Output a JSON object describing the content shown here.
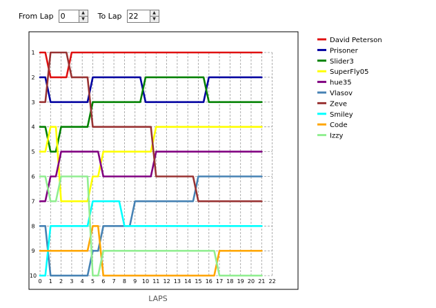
{
  "controls": {
    "from_label": "From Lap",
    "from_value": "0",
    "to_label": "To Lap",
    "to_value": "22"
  },
  "chart_data": {
    "type": "line",
    "xlabel": "LAPS",
    "ylabel": "",
    "x": [
      0,
      1,
      2,
      3,
      4,
      5,
      6,
      7,
      8,
      9,
      10,
      11,
      12,
      13,
      14,
      15,
      16,
      17,
      18,
      19,
      20,
      21
    ],
    "x_ticks": [
      0,
      1,
      2,
      3,
      4,
      5,
      6,
      7,
      8,
      9,
      10,
      11,
      12,
      13,
      14,
      15,
      16,
      17,
      18,
      19,
      20,
      21,
      22
    ],
    "y_ticks": [
      1,
      2,
      3,
      4,
      5,
      6,
      7,
      8,
      9,
      10
    ],
    "xlim": [
      0,
      22
    ],
    "ylim": [
      10,
      1
    ],
    "y_inverted": true,
    "grid": true,
    "legend_position": "right",
    "series": [
      {
        "name": "David Peterson",
        "color": "#e01010",
        "values": [
          1,
          2,
          2,
          1,
          1,
          1,
          1,
          1,
          1,
          1,
          1,
          1,
          1,
          1,
          1,
          1,
          1,
          1,
          1,
          1,
          1,
          1
        ]
      },
      {
        "name": "Prisoner",
        "color": "#0000a0",
        "values": [
          2,
          3,
          3,
          3,
          3,
          2,
          2,
          2,
          2,
          2,
          3,
          3,
          3,
          3,
          3,
          3,
          2,
          2,
          2,
          2,
          2,
          2
        ]
      },
      {
        "name": "Slider3",
        "color": "#008000",
        "values": [
          4,
          5,
          4,
          4,
          4,
          3,
          3,
          3,
          3,
          3,
          2,
          2,
          2,
          2,
          2,
          2,
          3,
          3,
          3,
          3,
          3,
          3
        ]
      },
      {
        "name": "SuperFly05",
        "color": "#ffff00",
        "values": [
          5,
          4,
          7,
          7,
          7,
          6,
          5,
          5,
          5,
          5,
          5,
          4,
          4,
          4,
          4,
          4,
          4,
          4,
          4,
          4,
          4,
          4
        ]
      },
      {
        "name": "hue35",
        "color": "#800080",
        "values": [
          7,
          6,
          5,
          5,
          5,
          5,
          6,
          6,
          6,
          6,
          6,
          5,
          5,
          5,
          5,
          5,
          5,
          5,
          5,
          5,
          5,
          5
        ]
      },
      {
        "name": "Vlasov",
        "color": "#4682b4",
        "values": [
          8,
          10,
          10,
          10,
          10,
          9,
          8,
          8,
          8,
          7,
          7,
          7,
          7,
          7,
          7,
          6,
          6,
          6,
          6,
          6,
          6,
          6
        ]
      },
      {
        "name": "Zeve",
        "color": "#993333",
        "values": [
          3,
          1,
          1,
          2,
          2,
          4,
          4,
          4,
          4,
          4,
          4,
          6,
          6,
          6,
          6,
          7,
          7,
          7,
          7,
          7,
          7,
          7
        ]
      },
      {
        "name": "Smiley",
        "color": "#00ffff",
        "values": [
          10,
          8,
          8,
          8,
          8,
          7,
          7,
          7,
          8,
          8,
          8,
          8,
          8,
          8,
          8,
          8,
          8,
          8,
          8,
          8,
          8,
          8
        ]
      },
      {
        "name": "Code",
        "color": "#ffa500",
        "values": [
          9,
          9,
          9,
          9,
          9,
          8,
          10,
          10,
          10,
          10,
          10,
          10,
          10,
          10,
          10,
          10,
          10,
          9,
          9,
          9,
          9,
          9
        ]
      },
      {
        "name": "Izzy",
        "color": "#90ee90",
        "values": [
          6,
          7,
          6,
          6,
          6,
          10,
          9,
          9,
          9,
          9,
          9,
          9,
          9,
          9,
          9,
          9,
          9,
          10,
          10,
          10,
          10,
          10
        ]
      }
    ]
  }
}
